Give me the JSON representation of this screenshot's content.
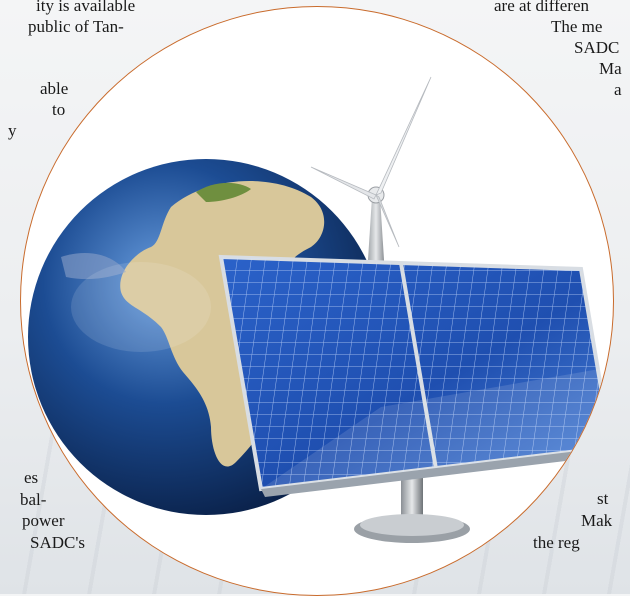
{
  "left_column": {
    "lines": [
      "ity is available",
      "public of Tan-",
      "",
      "able",
      "to",
      "y",
      "es",
      "bal-",
      "power",
      "SADC's"
    ]
  },
  "right_column": {
    "lines": [
      "are at differen",
      "The me",
      "SADC",
      "Ma",
      "a",
      "st",
      "Mak",
      "the reg"
    ]
  },
  "illustration": {
    "subject": "globe-wind-turbine-solar-panel",
    "border_color": "#c96b2c",
    "panel_color": "#1f4fb0",
    "globe_ocean_color": "#1c4c93",
    "globe_land_color": "#d8c79a"
  }
}
